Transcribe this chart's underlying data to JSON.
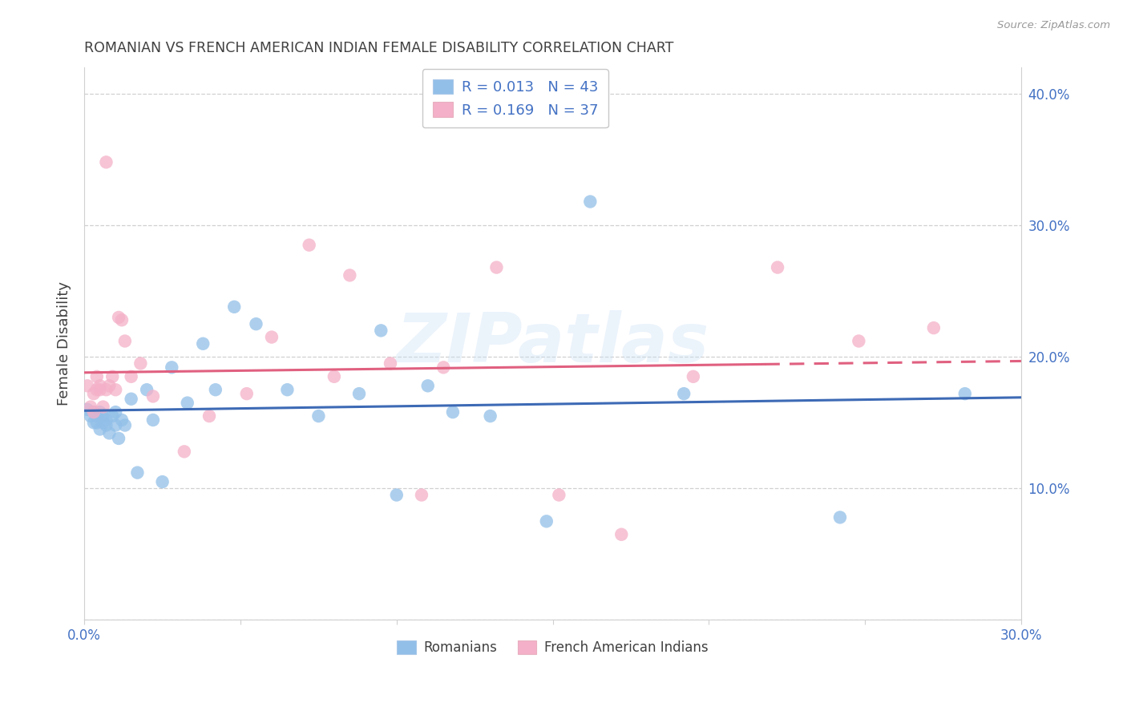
{
  "title": "ROMANIAN VS FRENCH AMERICAN INDIAN FEMALE DISABILITY CORRELATION CHART",
  "source": "Source: ZipAtlas.com",
  "ylabel": "Female Disability",
  "xlim": [
    0.0,
    0.3
  ],
  "ylim": [
    0.0,
    0.42
  ],
  "yticks": [
    0.0,
    0.1,
    0.2,
    0.3,
    0.4
  ],
  "ytick_labels_right": [
    "",
    "10.0%",
    "20.0%",
    "30.0%",
    "40.0%"
  ],
  "xticks": [
    0.0,
    0.05,
    0.1,
    0.15,
    0.2,
    0.25,
    0.3
  ],
  "xtick_labels": [
    "0.0%",
    "",
    "",
    "",
    "",
    "",
    "30.0%"
  ],
  "legend_r1": "R = 0.013",
  "legend_n1": "N = 43",
  "legend_r2": "R = 0.169",
  "legend_n2": "N = 37",
  "legend_label1": "Romanians",
  "legend_label2": "French American Indians",
  "blue_scatter_color": "#92bfe8",
  "pink_scatter_color": "#f4b0c8",
  "blue_line_color": "#3d6ab5",
  "pink_line_color": "#e06080",
  "axis_label_color": "#4472c4",
  "title_color": "#404040",
  "watermark_text": "ZIPatlas",
  "grid_color": "#d0d0d0",
  "romanians_x": [
    0.001,
    0.002,
    0.003,
    0.003,
    0.004,
    0.004,
    0.005,
    0.005,
    0.006,
    0.006,
    0.007,
    0.007,
    0.008,
    0.009,
    0.01,
    0.01,
    0.011,
    0.012,
    0.013,
    0.015,
    0.017,
    0.02,
    0.022,
    0.025,
    0.028,
    0.033,
    0.038,
    0.042,
    0.048,
    0.055,
    0.065,
    0.075,
    0.088,
    0.095,
    0.1,
    0.11,
    0.118,
    0.13,
    0.148,
    0.162,
    0.192,
    0.242,
    0.282
  ],
  "romanians_y": [
    0.16,
    0.155,
    0.15,
    0.158,
    0.15,
    0.155,
    0.145,
    0.158,
    0.15,
    0.155,
    0.148,
    0.152,
    0.142,
    0.155,
    0.148,
    0.158,
    0.138,
    0.152,
    0.148,
    0.168,
    0.112,
    0.175,
    0.152,
    0.105,
    0.192,
    0.165,
    0.21,
    0.175,
    0.238,
    0.225,
    0.175,
    0.155,
    0.172,
    0.22,
    0.095,
    0.178,
    0.158,
    0.155,
    0.075,
    0.318,
    0.172,
    0.078,
    0.172
  ],
  "french_ai_x": [
    0.001,
    0.002,
    0.003,
    0.003,
    0.004,
    0.004,
    0.005,
    0.005,
    0.006,
    0.007,
    0.007,
    0.008,
    0.009,
    0.01,
    0.011,
    0.012,
    0.013,
    0.015,
    0.018,
    0.022,
    0.032,
    0.04,
    0.052,
    0.072,
    0.085,
    0.098,
    0.115,
    0.132,
    0.152,
    0.172,
    0.195,
    0.222,
    0.248,
    0.272,
    0.06,
    0.08,
    0.108
  ],
  "french_ai_y": [
    0.178,
    0.162,
    0.172,
    0.158,
    0.175,
    0.185,
    0.175,
    0.178,
    0.162,
    0.175,
    0.348,
    0.178,
    0.185,
    0.175,
    0.23,
    0.228,
    0.212,
    0.185,
    0.195,
    0.17,
    0.128,
    0.155,
    0.172,
    0.285,
    0.262,
    0.195,
    0.192,
    0.268,
    0.095,
    0.065,
    0.185,
    0.268,
    0.212,
    0.222,
    0.215,
    0.185,
    0.095
  ]
}
